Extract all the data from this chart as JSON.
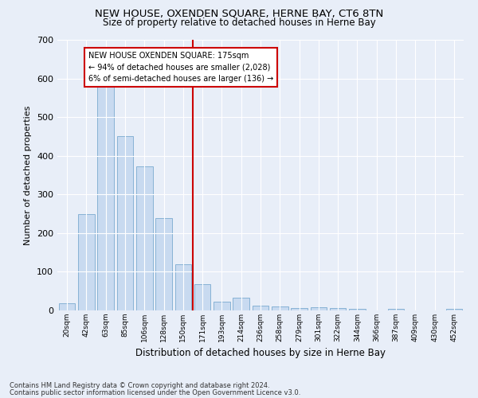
{
  "title": "NEW HOUSE, OXENDEN SQUARE, HERNE BAY, CT6 8TN",
  "subtitle": "Size of property relative to detached houses in Herne Bay",
  "xlabel": "Distribution of detached houses by size in Herne Bay",
  "ylabel": "Number of detached properties",
  "bar_color": "#c8daf0",
  "bar_edge_color": "#7aaad0",
  "background_color": "#e8eef8",
  "grid_color": "#ffffff",
  "categories": [
    "20sqm",
    "42sqm",
    "63sqm",
    "85sqm",
    "106sqm",
    "128sqm",
    "150sqm",
    "171sqm",
    "193sqm",
    "214sqm",
    "236sqm",
    "258sqm",
    "279sqm",
    "301sqm",
    "322sqm",
    "344sqm",
    "366sqm",
    "387sqm",
    "409sqm",
    "430sqm",
    "452sqm"
  ],
  "values": [
    18,
    250,
    585,
    450,
    372,
    238,
    120,
    68,
    23,
    32,
    13,
    10,
    7,
    8,
    7,
    5,
    0,
    5,
    0,
    0,
    5
  ],
  "vline_index": 7,
  "vline_color": "#cc0000",
  "annotation_text": "NEW HOUSE OXENDEN SQUARE: 175sqm\n← 94% of detached houses are smaller (2,028)\n6% of semi-detached houses are larger (136) →",
  "annotation_box_color": "#ffffff",
  "annotation_box_edge_color": "#cc0000",
  "ylim": [
    0,
    700
  ],
  "yticks": [
    0,
    100,
    200,
    300,
    400,
    500,
    600,
    700
  ],
  "footer_line1": "Contains HM Land Registry data © Crown copyright and database right 2024.",
  "footer_line2": "Contains public sector information licensed under the Open Government Licence v3.0."
}
